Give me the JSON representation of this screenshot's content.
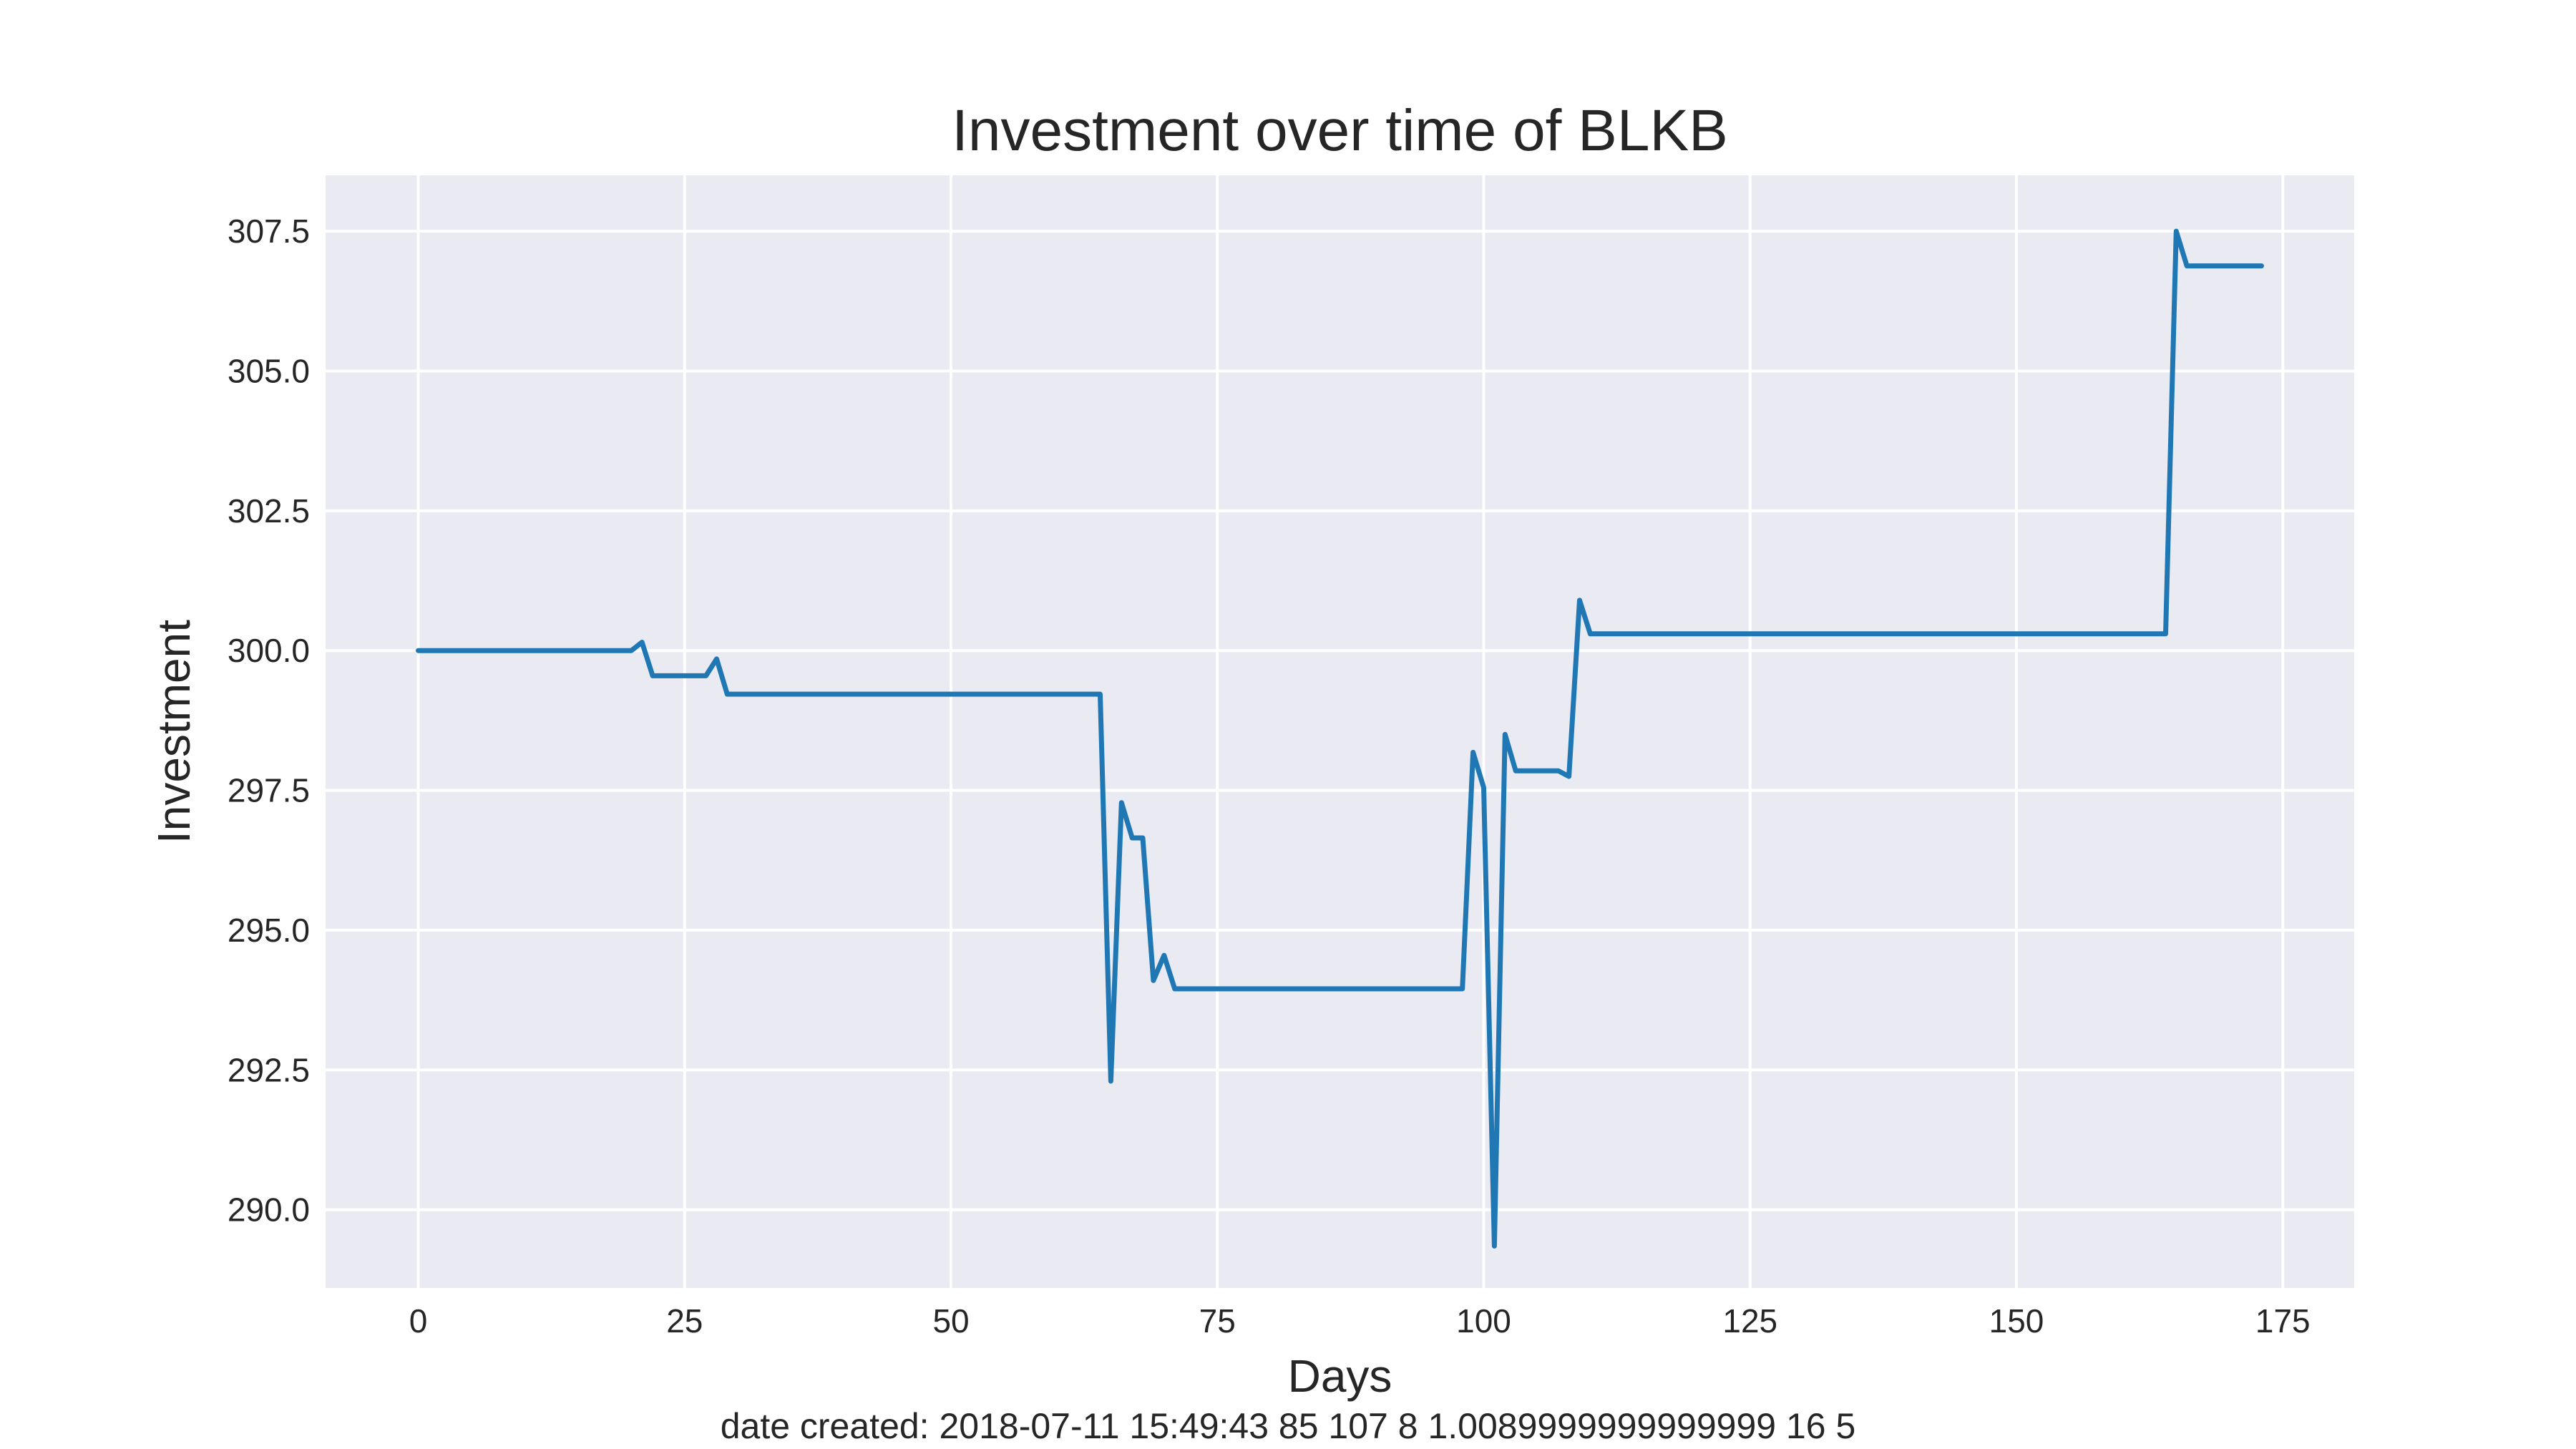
{
  "chart_data": {
    "type": "line",
    "title": "Investment over time of BLKB",
    "xlabel": "Days",
    "ylabel": "Investment",
    "xlim": [
      -8.7,
      181.7
    ],
    "ylim": [
      288.6,
      308.5
    ],
    "xticks": [
      0,
      25,
      50,
      75,
      100,
      125,
      150,
      175
    ],
    "yticks": [
      290.0,
      292.5,
      295.0,
      297.5,
      300.0,
      302.5,
      305.0,
      307.5
    ],
    "xtick_labels": [
      "0",
      "25",
      "50",
      "75",
      "100",
      "125",
      "150",
      "175"
    ],
    "ytick_labels": [
      "290.0",
      "292.5",
      "295.0",
      "297.5",
      "300.0",
      "302.5",
      "305.0",
      "307.5"
    ],
    "grid": true,
    "colors": {
      "background": "#eaeaf2",
      "grid": "#ffffff",
      "line": "#1f77b4"
    },
    "series": [
      {
        "points": [
          [
            0,
            300.0
          ],
          [
            20,
            300.0
          ],
          [
            21,
            300.15
          ],
          [
            22,
            299.55
          ],
          [
            27,
            299.55
          ],
          [
            28,
            299.85
          ],
          [
            29,
            299.22
          ],
          [
            64,
            299.22
          ],
          [
            65,
            292.3
          ],
          [
            66,
            297.28
          ],
          [
            67,
            296.65
          ],
          [
            68,
            296.65
          ],
          [
            69,
            294.1
          ],
          [
            70,
            294.55
          ],
          [
            71,
            293.95
          ],
          [
            98,
            293.95
          ],
          [
            99,
            298.18
          ],
          [
            100,
            297.55
          ],
          [
            101,
            289.35
          ],
          [
            102,
            298.5
          ],
          [
            103,
            297.85
          ],
          [
            107,
            297.85
          ],
          [
            108,
            297.75
          ],
          [
            109,
            300.9
          ],
          [
            110,
            300.3
          ],
          [
            164,
            300.3
          ],
          [
            165,
            307.5
          ],
          [
            166,
            306.88
          ],
          [
            173,
            306.88
          ]
        ]
      }
    ]
  },
  "footer_text": "date created: 2018-07-11 15:49:43 85 107 8 1.0089999999999999 16 5"
}
